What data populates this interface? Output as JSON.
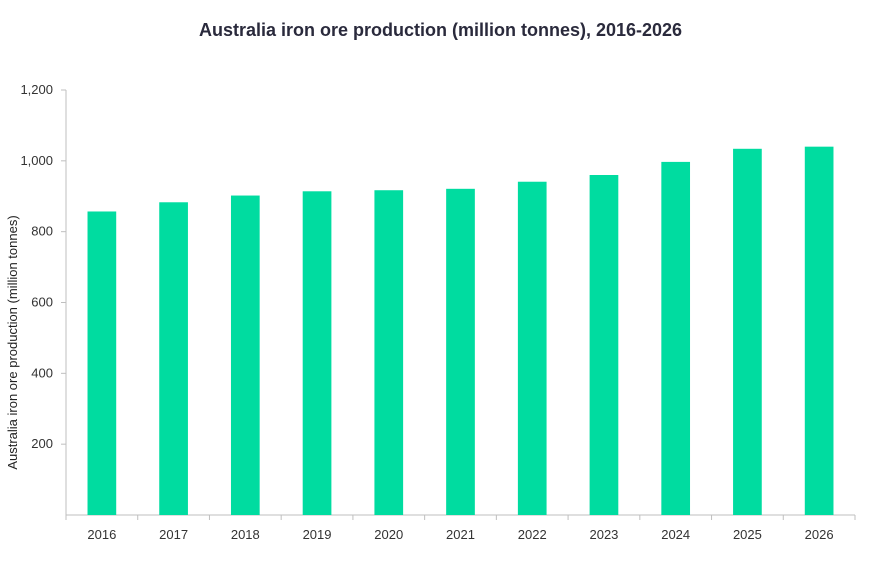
{
  "chart_data": {
    "type": "bar",
    "title": "Australia iron ore production (million tonnes), 2016-2026",
    "xlabel": "",
    "ylabel": "Australia iron ore production (million tonnes)",
    "categories": [
      "2016",
      "2017",
      "2018",
      "2019",
      "2020",
      "2021",
      "2022",
      "2023",
      "2024",
      "2025",
      "2026"
    ],
    "values": [
      857,
      883,
      902,
      914,
      917,
      921,
      941,
      960,
      997,
      1034,
      1040
    ],
    "ylim": [
      0,
      1200
    ],
    "y_ticks": [
      200,
      400,
      600,
      800,
      1000,
      1200
    ],
    "y_tick_labels": [
      "200",
      "400",
      "600",
      "800",
      "1,000",
      "1,200"
    ],
    "grid": false,
    "legend": "none",
    "bar_color": "#00dca0",
    "axis_color": "#bfbfbf"
  }
}
